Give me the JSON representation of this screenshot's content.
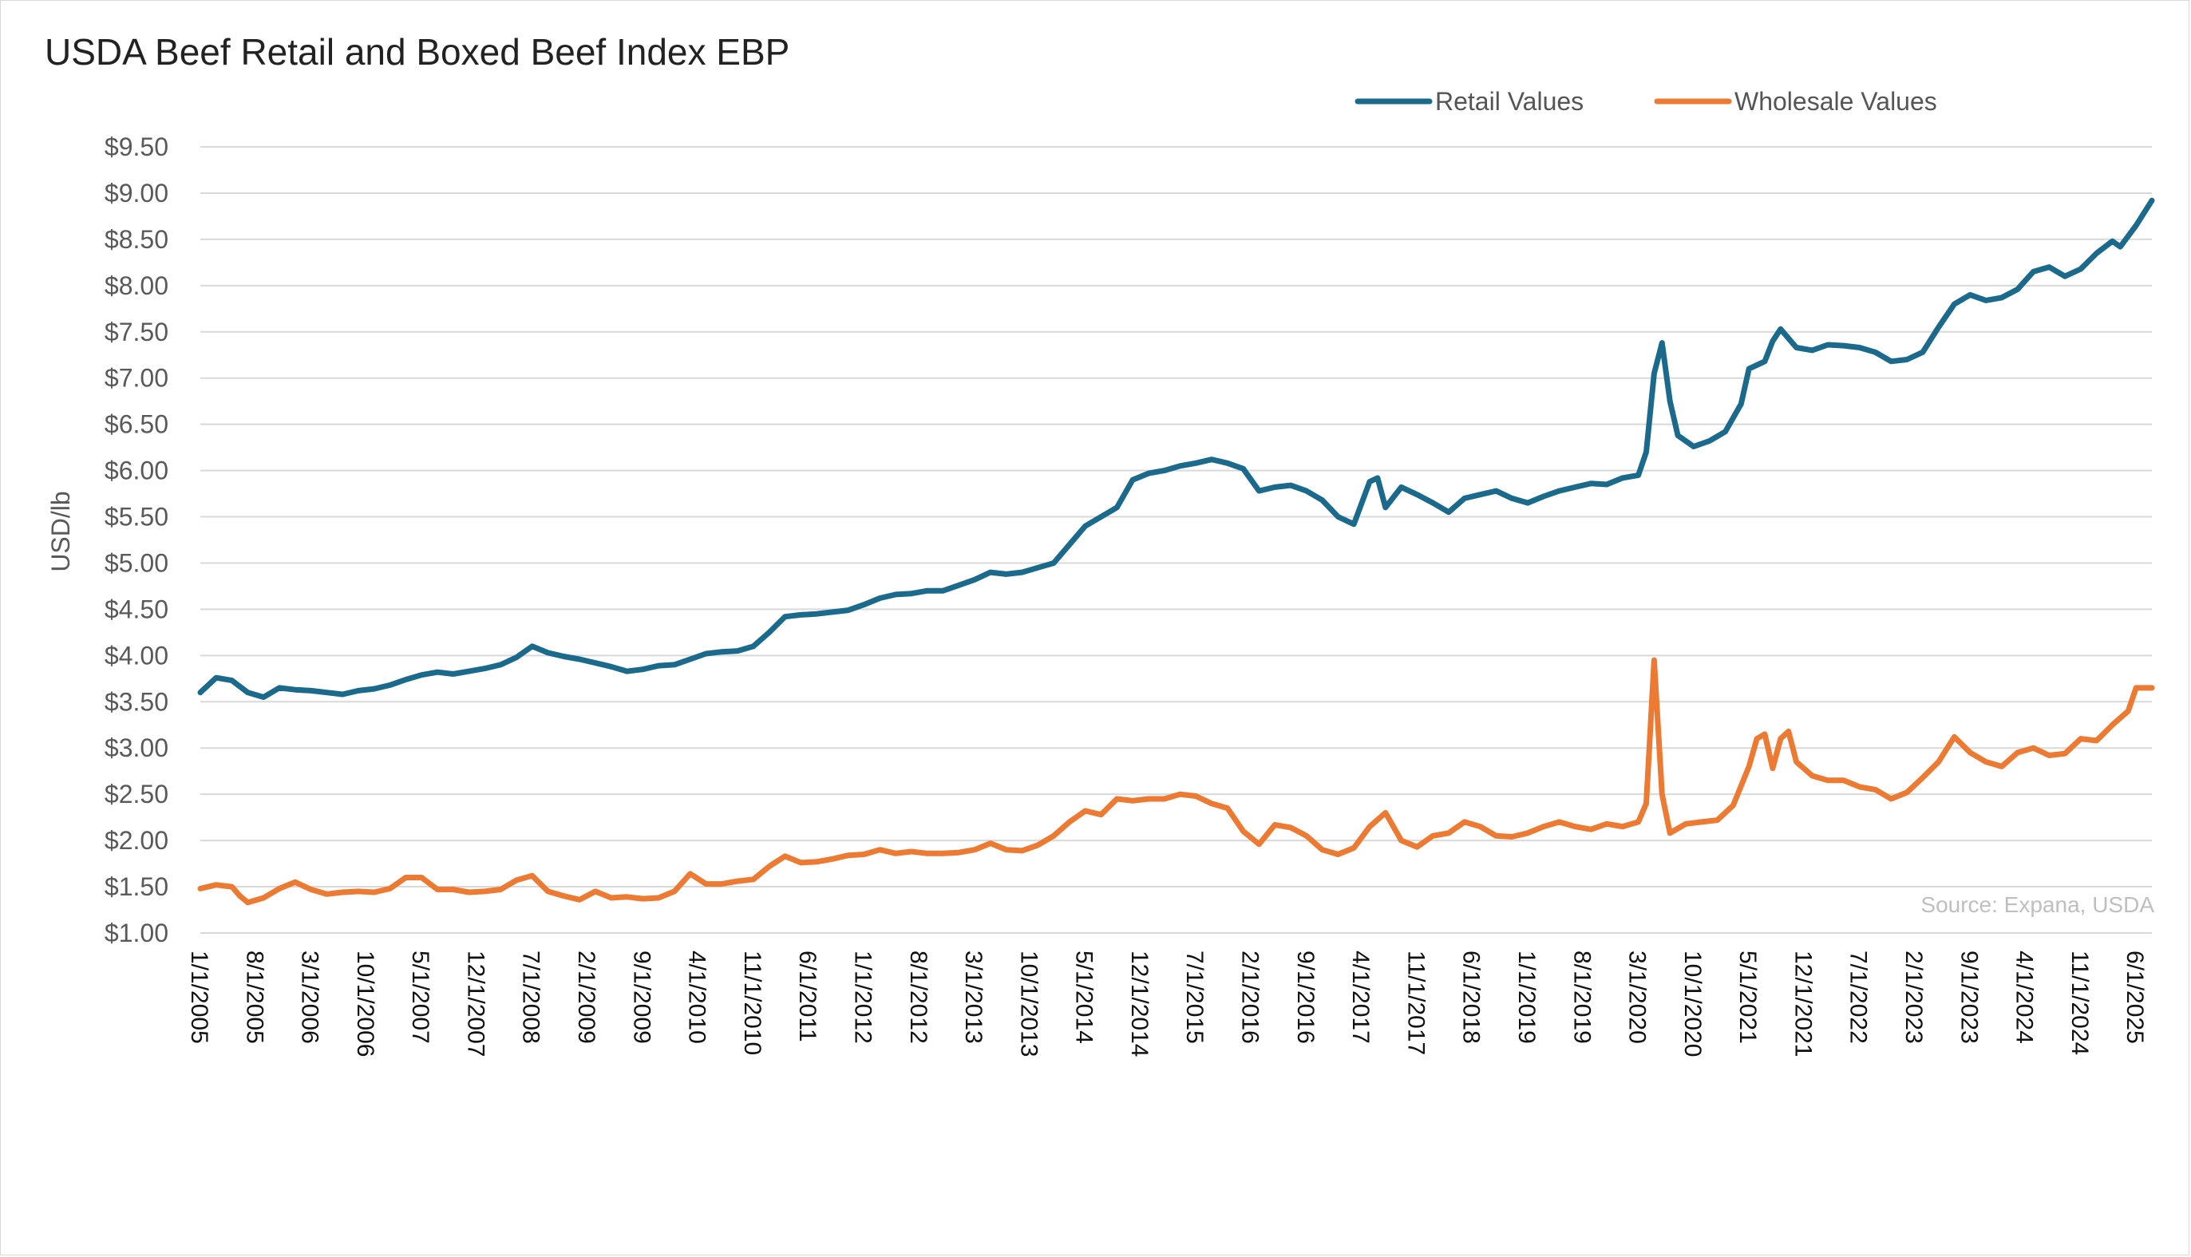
{
  "chart_data": {
    "type": "line",
    "title": "USDA Beef Retail and Boxed Beef Index EBP",
    "xlabel": "",
    "ylabel": "USD/lb",
    "ylim": [
      1.0,
      9.5
    ],
    "y_ticks": [
      "$1.00",
      "$1.50",
      "$2.00",
      "$2.50",
      "$3.00",
      "$3.50",
      "$4.00",
      "$4.50",
      "$5.00",
      "$5.50",
      "$6.00",
      "$6.50",
      "$7.00",
      "$7.50",
      "$8.00",
      "$8.50",
      "$9.00",
      "$9.50"
    ],
    "x_start": "2005-01",
    "x_end": "2025-08",
    "x_ticks": [
      "1/1/2005",
      "8/1/2005",
      "3/1/2006",
      "10/1/2006",
      "5/1/2007",
      "12/1/2007",
      "7/1/2008",
      "2/1/2009",
      "9/1/2009",
      "4/1/2010",
      "11/1/2010",
      "6/1/2011",
      "1/1/2012",
      "8/1/2012",
      "3/1/2013",
      "10/1/2013",
      "5/1/2014",
      "12/1/2014",
      "7/1/2015",
      "2/1/2016",
      "9/1/2016",
      "4/1/2017",
      "11/1/2017",
      "6/1/2018",
      "1/1/2019",
      "8/1/2019",
      "3/1/2020",
      "10/1/2020",
      "5/1/2021",
      "12/1/2021",
      "7/1/2022",
      "2/1/2023",
      "9/1/2023",
      "4/1/2024",
      "11/1/2024",
      "6/1/2025"
    ],
    "grid": true,
    "legend_position": "top-right",
    "source": "Source: Expana, USDA",
    "series": [
      {
        "name": "Retail Values",
        "color": "#1b6a8c",
        "points": [
          [
            "2005-01",
            3.6
          ],
          [
            "2005-03",
            3.76
          ],
          [
            "2005-05",
            3.73
          ],
          [
            "2005-07",
            3.6
          ],
          [
            "2005-09",
            3.55
          ],
          [
            "2005-11",
            3.65
          ],
          [
            "2006-01",
            3.63
          ],
          [
            "2006-03",
            3.62
          ],
          [
            "2006-05",
            3.6
          ],
          [
            "2006-07",
            3.58
          ],
          [
            "2006-09",
            3.62
          ],
          [
            "2006-11",
            3.64
          ],
          [
            "2007-01",
            3.68
          ],
          [
            "2007-03",
            3.74
          ],
          [
            "2007-05",
            3.79
          ],
          [
            "2007-07",
            3.82
          ],
          [
            "2007-09",
            3.8
          ],
          [
            "2007-11",
            3.83
          ],
          [
            "2008-01",
            3.86
          ],
          [
            "2008-03",
            3.9
          ],
          [
            "2008-05",
            3.98
          ],
          [
            "2008-07",
            4.1
          ],
          [
            "2008-09",
            4.03
          ],
          [
            "2008-11",
            3.99
          ],
          [
            "2009-01",
            3.96
          ],
          [
            "2009-03",
            3.92
          ],
          [
            "2009-05",
            3.88
          ],
          [
            "2009-07",
            3.83
          ],
          [
            "2009-09",
            3.85
          ],
          [
            "2009-11",
            3.89
          ],
          [
            "2010-01",
            3.9
          ],
          [
            "2010-03",
            3.96
          ],
          [
            "2010-05",
            4.02
          ],
          [
            "2010-07",
            4.04
          ],
          [
            "2010-09",
            4.05
          ],
          [
            "2010-11",
            4.1
          ],
          [
            "2011-01",
            4.25
          ],
          [
            "2011-03",
            4.42
          ],
          [
            "2011-05",
            4.44
          ],
          [
            "2011-07",
            4.45
          ],
          [
            "2011-09",
            4.47
          ],
          [
            "2011-11",
            4.49
          ],
          [
            "2012-01",
            4.55
          ],
          [
            "2012-03",
            4.62
          ],
          [
            "2012-05",
            4.66
          ],
          [
            "2012-07",
            4.67
          ],
          [
            "2012-09",
            4.7
          ],
          [
            "2012-11",
            4.7
          ],
          [
            "2013-01",
            4.76
          ],
          [
            "2013-03",
            4.82
          ],
          [
            "2013-05",
            4.9
          ],
          [
            "2013-07",
            4.88
          ],
          [
            "2013-09",
            4.9
          ],
          [
            "2013-11",
            4.95
          ],
          [
            "2014-01",
            5.0
          ],
          [
            "2014-03",
            5.2
          ],
          [
            "2014-05",
            5.4
          ],
          [
            "2014-07",
            5.5
          ],
          [
            "2014-09",
            5.6
          ],
          [
            "2014-11",
            5.9
          ],
          [
            "2015-01",
            5.97
          ],
          [
            "2015-03",
            6.0
          ],
          [
            "2015-05",
            6.05
          ],
          [
            "2015-07",
            6.08
          ],
          [
            "2015-09",
            6.12
          ],
          [
            "2015-11",
            6.08
          ],
          [
            "2016-01",
            6.02
          ],
          [
            "2016-03",
            5.78
          ],
          [
            "2016-05",
            5.82
          ],
          [
            "2016-07",
            5.84
          ],
          [
            "2016-09",
            5.78
          ],
          [
            "2016-11",
            5.68
          ],
          [
            "2017-01",
            5.5
          ],
          [
            "2017-03",
            5.42
          ],
          [
            "2017-05",
            5.88
          ],
          [
            "2017-06",
            5.92
          ],
          [
            "2017-07",
            5.6
          ],
          [
            "2017-09",
            5.82
          ],
          [
            "2017-11",
            5.74
          ],
          [
            "2018-01",
            5.65
          ],
          [
            "2018-03",
            5.55
          ],
          [
            "2018-05",
            5.7
          ],
          [
            "2018-07",
            5.74
          ],
          [
            "2018-09",
            5.78
          ],
          [
            "2018-11",
            5.7
          ],
          [
            "2019-01",
            5.65
          ],
          [
            "2019-03",
            5.72
          ],
          [
            "2019-05",
            5.78
          ],
          [
            "2019-07",
            5.82
          ],
          [
            "2019-09",
            5.86
          ],
          [
            "2019-11",
            5.85
          ],
          [
            "2020-01",
            5.92
          ],
          [
            "2020-03",
            5.95
          ],
          [
            "2020-04",
            6.2
          ],
          [
            "2020-05",
            7.05
          ],
          [
            "2020-06",
            7.38
          ],
          [
            "2020-07",
            6.75
          ],
          [
            "2020-08",
            6.38
          ],
          [
            "2020-10",
            6.26
          ],
          [
            "2020-12",
            6.32
          ],
          [
            "2021-02",
            6.42
          ],
          [
            "2021-04",
            6.72
          ],
          [
            "2021-05",
            7.1
          ],
          [
            "2021-07",
            7.18
          ],
          [
            "2021-08",
            7.4
          ],
          [
            "2021-09",
            7.53
          ],
          [
            "2021-11",
            7.33
          ],
          [
            "2022-01",
            7.3
          ],
          [
            "2022-03",
            7.36
          ],
          [
            "2022-05",
            7.35
          ],
          [
            "2022-07",
            7.33
          ],
          [
            "2022-09",
            7.28
          ],
          [
            "2022-11",
            7.18
          ],
          [
            "2023-01",
            7.2
          ],
          [
            "2023-03",
            7.28
          ],
          [
            "2023-05",
            7.55
          ],
          [
            "2023-07",
            7.8
          ],
          [
            "2023-09",
            7.9
          ],
          [
            "2023-11",
            7.84
          ],
          [
            "2024-01",
            7.87
          ],
          [
            "2024-03",
            7.96
          ],
          [
            "2024-05",
            8.15
          ],
          [
            "2024-07",
            8.2
          ],
          [
            "2024-09",
            8.1
          ],
          [
            "2024-11",
            8.18
          ],
          [
            "2025-01",
            8.35
          ],
          [
            "2025-03",
            8.48
          ],
          [
            "2025-04",
            8.42
          ],
          [
            "2025-06",
            8.65
          ],
          [
            "2025-08",
            8.92
          ]
        ]
      },
      {
        "name": "Wholesale Values",
        "color": "#ec7a32",
        "points": [
          [
            "2005-01",
            1.48
          ],
          [
            "2005-03",
            1.52
          ],
          [
            "2005-05",
            1.5
          ],
          [
            "2005-06",
            1.4
          ],
          [
            "2005-07",
            1.33
          ],
          [
            "2005-09",
            1.38
          ],
          [
            "2005-11",
            1.48
          ],
          [
            "2006-01",
            1.55
          ],
          [
            "2006-03",
            1.47
          ],
          [
            "2006-05",
            1.42
          ],
          [
            "2006-07",
            1.44
          ],
          [
            "2006-09",
            1.45
          ],
          [
            "2006-11",
            1.44
          ],
          [
            "2007-01",
            1.48
          ],
          [
            "2007-03",
            1.6
          ],
          [
            "2007-05",
            1.6
          ],
          [
            "2007-07",
            1.47
          ],
          [
            "2007-09",
            1.47
          ],
          [
            "2007-11",
            1.44
          ],
          [
            "2008-01",
            1.45
          ],
          [
            "2008-03",
            1.47
          ],
          [
            "2008-05",
            1.57
          ],
          [
            "2008-07",
            1.62
          ],
          [
            "2008-09",
            1.45
          ],
          [
            "2008-11",
            1.4
          ],
          [
            "2009-01",
            1.36
          ],
          [
            "2009-03",
            1.45
          ],
          [
            "2009-05",
            1.38
          ],
          [
            "2009-07",
            1.39
          ],
          [
            "2009-09",
            1.37
          ],
          [
            "2009-11",
            1.38
          ],
          [
            "2010-01",
            1.45
          ],
          [
            "2010-03",
            1.64
          ],
          [
            "2010-05",
            1.53
          ],
          [
            "2010-07",
            1.53
          ],
          [
            "2010-09",
            1.56
          ],
          [
            "2010-11",
            1.58
          ],
          [
            "2011-01",
            1.72
          ],
          [
            "2011-03",
            1.83
          ],
          [
            "2011-05",
            1.76
          ],
          [
            "2011-07",
            1.77
          ],
          [
            "2011-09",
            1.8
          ],
          [
            "2011-11",
            1.84
          ],
          [
            "2012-01",
            1.85
          ],
          [
            "2012-03",
            1.9
          ],
          [
            "2012-05",
            1.86
          ],
          [
            "2012-07",
            1.88
          ],
          [
            "2012-09",
            1.86
          ],
          [
            "2012-11",
            1.86
          ],
          [
            "2013-01",
            1.87
          ],
          [
            "2013-03",
            1.9
          ],
          [
            "2013-05",
            1.97
          ],
          [
            "2013-07",
            1.9
          ],
          [
            "2013-09",
            1.89
          ],
          [
            "2013-11",
            1.95
          ],
          [
            "2014-01",
            2.05
          ],
          [
            "2014-03",
            2.2
          ],
          [
            "2014-05",
            2.32
          ],
          [
            "2014-07",
            2.28
          ],
          [
            "2014-09",
            2.45
          ],
          [
            "2014-11",
            2.43
          ],
          [
            "2015-01",
            2.45
          ],
          [
            "2015-03",
            2.45
          ],
          [
            "2015-05",
            2.5
          ],
          [
            "2015-07",
            2.48
          ],
          [
            "2015-09",
            2.4
          ],
          [
            "2015-11",
            2.35
          ],
          [
            "2016-01",
            2.1
          ],
          [
            "2016-03",
            1.96
          ],
          [
            "2016-05",
            2.17
          ],
          [
            "2016-07",
            2.14
          ],
          [
            "2016-09",
            2.05
          ],
          [
            "2016-11",
            1.9
          ],
          [
            "2017-01",
            1.85
          ],
          [
            "2017-03",
            1.92
          ],
          [
            "2017-05",
            2.15
          ],
          [
            "2017-07",
            2.3
          ],
          [
            "2017-09",
            2.0
          ],
          [
            "2017-11",
            1.93
          ],
          [
            "2018-01",
            2.05
          ],
          [
            "2018-03",
            2.08
          ],
          [
            "2018-05",
            2.2
          ],
          [
            "2018-07",
            2.15
          ],
          [
            "2018-09",
            2.05
          ],
          [
            "2018-11",
            2.04
          ],
          [
            "2019-01",
            2.08
          ],
          [
            "2019-03",
            2.15
          ],
          [
            "2019-05",
            2.2
          ],
          [
            "2019-07",
            2.15
          ],
          [
            "2019-09",
            2.12
          ],
          [
            "2019-11",
            2.18
          ],
          [
            "2020-01",
            2.15
          ],
          [
            "2020-03",
            2.2
          ],
          [
            "2020-04",
            2.4
          ],
          [
            "2020-05",
            3.95
          ],
          [
            "2020-06",
            2.5
          ],
          [
            "2020-07",
            2.08
          ],
          [
            "2020-09",
            2.18
          ],
          [
            "2020-11",
            2.2
          ],
          [
            "2021-01",
            2.22
          ],
          [
            "2021-03",
            2.38
          ],
          [
            "2021-05",
            2.8
          ],
          [
            "2021-06",
            3.1
          ],
          [
            "2021-07",
            3.15
          ],
          [
            "2021-08",
            2.78
          ],
          [
            "2021-09",
            3.1
          ],
          [
            "2021-10",
            3.18
          ],
          [
            "2021-11",
            2.85
          ],
          [
            "2022-01",
            2.7
          ],
          [
            "2022-03",
            2.65
          ],
          [
            "2022-05",
            2.65
          ],
          [
            "2022-07",
            2.58
          ],
          [
            "2022-09",
            2.55
          ],
          [
            "2022-11",
            2.45
          ],
          [
            "2023-01",
            2.52
          ],
          [
            "2023-03",
            2.68
          ],
          [
            "2023-05",
            2.85
          ],
          [
            "2023-07",
            3.12
          ],
          [
            "2023-09",
            2.95
          ],
          [
            "2023-11",
            2.85
          ],
          [
            "2024-01",
            2.8
          ],
          [
            "2024-03",
            2.95
          ],
          [
            "2024-05",
            3.0
          ],
          [
            "2024-07",
            2.92
          ],
          [
            "2024-09",
            2.94
          ],
          [
            "2024-11",
            3.1
          ],
          [
            "2025-01",
            3.08
          ],
          [
            "2025-03",
            3.25
          ],
          [
            "2025-05",
            3.4
          ],
          [
            "2025-06",
            3.65
          ],
          [
            "2025-08",
            3.65
          ]
        ]
      }
    ]
  }
}
